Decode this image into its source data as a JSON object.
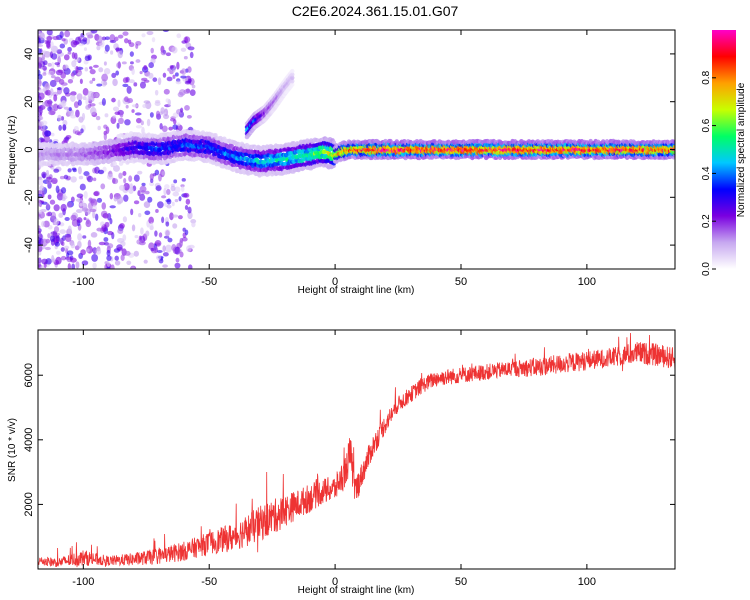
{
  "title": "C2E6.2024.361.15.01.G07",
  "chart_data": [
    {
      "type": "heatmap",
      "xlabel": "Height of straight line (km)",
      "ylabel": "Frequency (Hz)",
      "xlim": [
        -118,
        135
      ],
      "ylim": [
        -50,
        50
      ],
      "xticks": [
        -100,
        -50,
        0,
        50,
        100
      ],
      "yticks": [
        -40,
        -20,
        0,
        20,
        40
      ],
      "colorbar": {
        "label": "Normalized spectral amplitude",
        "range": [
          0,
          1
        ],
        "ticks": [
          0.0,
          0.2,
          0.4,
          0.6,
          0.8
        ],
        "colors": [
          "#ffffff",
          "#c7a8f0",
          "#7a00e0",
          "#0000ff",
          "#00c8ff",
          "#00ff64",
          "#c8ff00",
          "#ffa000",
          "#ff0000",
          "#ff00c8"
        ]
      },
      "ridge": {
        "x": [
          -118,
          -100,
          -90,
          -80,
          -70,
          -60,
          -50,
          -40,
          -30,
          -20,
          -10,
          -5,
          0,
          5,
          10,
          20,
          40,
          60,
          80,
          100,
          120,
          135
        ],
        "freq": [
          -2,
          -2,
          -1,
          1,
          0,
          2,
          1,
          -3,
          -5,
          -4,
          -2,
          -1,
          -2,
          0,
          0,
          0,
          0,
          0,
          0,
          0,
          0,
          0
        ],
        "amplitude": [
          0.12,
          0.15,
          0.2,
          0.3,
          0.35,
          0.35,
          0.35,
          0.4,
          0.45,
          0.5,
          0.55,
          0.6,
          0.7,
          0.8,
          0.85,
          0.9,
          0.9,
          0.9,
          0.9,
          0.9,
          0.88,
          0.85
        ]
      },
      "branch": {
        "x": [
          -35,
          -32,
          -28,
          -24,
          -20,
          -17
        ],
        "freq": [
          8,
          12,
          15,
          20,
          26,
          30
        ],
        "amplitude": [
          0.4,
          0.35,
          0.2,
          0.15,
          0.1,
          0.08
        ]
      }
    },
    {
      "type": "line",
      "xlabel": "Height of straight line (km)",
      "ylabel": "SNR (10 * v/v)",
      "xlim": [
        -118,
        135
      ],
      "ylim": [
        0,
        7400
      ],
      "xticks": [
        -100,
        -50,
        0,
        50,
        100
      ],
      "yticks": [
        2000,
        4000,
        6000
      ],
      "color": "#ee3333",
      "series": [
        {
          "x": [
            -118,
            -110,
            -100,
            -90,
            -80,
            -70,
            -60,
            -50,
            -45,
            -40,
            -35,
            -30,
            -25,
            -20,
            -15,
            -10,
            -5,
            0,
            4,
            6,
            8,
            10,
            15,
            20,
            25,
            30,
            35,
            40,
            50,
            60,
            70,
            80,
            90,
            100,
            110,
            120,
            130,
            135
          ],
          "y": [
            250,
            200,
            350,
            250,
            300,
            400,
            550,
            800,
            900,
            1000,
            1200,
            1400,
            1600,
            1800,
            2000,
            2200,
            2400,
            2500,
            3000,
            3600,
            2400,
            2800,
            3800,
            4500,
            5100,
            5400,
            5700,
            5900,
            6000,
            6100,
            6200,
            6250,
            6350,
            6450,
            6550,
            6700,
            6600,
            6500
          ],
          "noise": [
            150,
            150,
            250,
            150,
            200,
            250,
            300,
            350,
            400,
            450,
            500,
            550,
            550,
            500,
            450,
            450,
            400,
            400,
            500,
            600,
            500,
            400,
            350,
            300,
            250,
            250,
            250,
            250,
            250,
            250,
            250,
            300,
            300,
            300,
            300,
            350,
            350,
            350
          ]
        }
      ]
    }
  ]
}
